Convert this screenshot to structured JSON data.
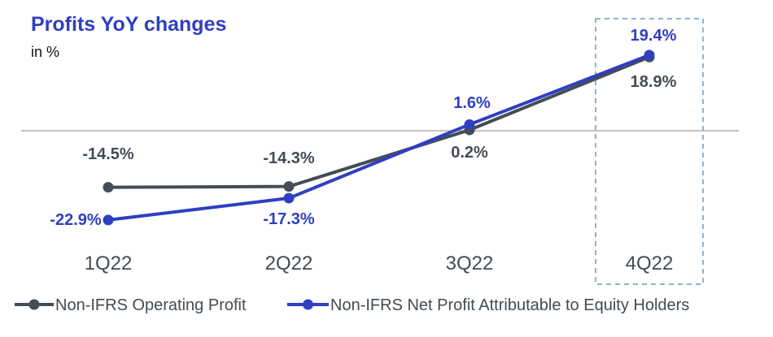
{
  "chart_data": {
    "type": "line",
    "title": "Profits YoY changes",
    "subtitle": "in %",
    "categories": [
      "1Q22",
      "2Q22",
      "3Q22",
      "4Q22"
    ],
    "highlighted_category": "4Q22",
    "grid": false,
    "zero_line": true,
    "legend_position": "bottom",
    "series": [
      {
        "name": "Non-IFRS Operating Profit",
        "values": [
          -14.5,
          -14.3,
          0.2,
          18.9
        ],
        "labels": [
          "-14.5%",
          "-14.3%",
          "0.2%",
          "18.9%"
        ],
        "color": "#454c55"
      },
      {
        "name": "Non-IFRS Net Profit Attributable to Equity Holders",
        "values": [
          -22.9,
          -17.3,
          1.6,
          19.4
        ],
        "labels": [
          "-22.9%",
          "-17.3%",
          "1.6%",
          "19.4%"
        ],
        "color": "#2f3fc2"
      }
    ]
  }
}
